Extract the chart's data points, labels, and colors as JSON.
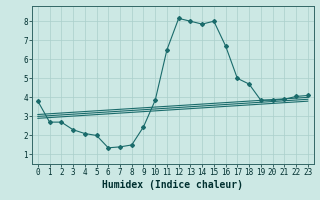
{
  "bg_color": "#cce8e4",
  "grid_color": "#aacfcb",
  "line_color": "#1a6b6b",
  "xlabel": "Humidex (Indice chaleur)",
  "xlabel_fontsize": 7,
  "xlim": [
    -0.5,
    23.5
  ],
  "ylim": [
    0.5,
    8.8
  ],
  "xticks": [
    0,
    1,
    2,
    3,
    4,
    5,
    6,
    7,
    8,
    9,
    10,
    11,
    12,
    13,
    14,
    15,
    16,
    17,
    18,
    19,
    20,
    21,
    22,
    23
  ],
  "yticks": [
    1,
    2,
    3,
    4,
    5,
    6,
    7,
    8
  ],
  "series1_x": [
    0,
    1,
    2,
    3,
    4,
    5,
    6,
    7,
    8,
    9,
    10,
    11,
    12,
    13,
    14,
    15,
    16,
    17,
    18,
    19,
    20,
    21,
    22,
    23
  ],
  "series1_y": [
    3.8,
    2.7,
    2.7,
    2.3,
    2.1,
    2.0,
    1.35,
    1.4,
    1.5,
    2.45,
    3.85,
    6.5,
    8.15,
    8.0,
    7.85,
    8.0,
    6.7,
    5.0,
    4.7,
    3.85,
    3.85,
    3.9,
    4.05,
    4.1
  ],
  "line2_x0": 0,
  "line2_x1": 23,
  "line2_y0": 2.9,
  "line2_y1": 3.8,
  "line3_x0": 0,
  "line3_x1": 23,
  "line3_y0": 3.0,
  "line3_y1": 3.9,
  "line4_x0": 0,
  "line4_x1": 23,
  "line4_y0": 3.1,
  "line4_y1": 4.0,
  "tick_fontsize": 5.5,
  "line_width": 0.8,
  "marker": "D",
  "marker_size": 2.0
}
